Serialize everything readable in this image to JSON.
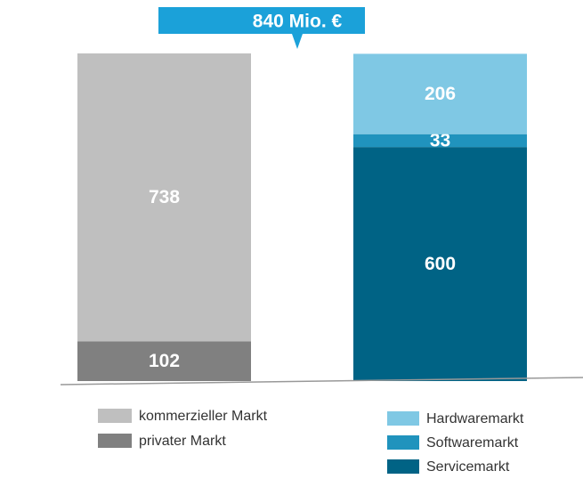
{
  "chart_data": {
    "type": "bar",
    "stacked": true,
    "title": "840 Mio. €",
    "categories": [
      null,
      null
    ],
    "series": [
      {
        "name": "privater Markt",
        "color": "#808080",
        "values": [
          102,
          null
        ]
      },
      {
        "name": "kommerzieller Markt",
        "color": "#bfbfbf",
        "values": [
          738,
          null
        ]
      },
      {
        "name": "Servicemarkt",
        "color": "#006385",
        "values": [
          null,
          600
        ]
      },
      {
        "name": "Softwaremarkt",
        "color": "#2093bd",
        "values": [
          null,
          33
        ]
      },
      {
        "name": "Hardwaremarkt",
        "color": "#7fc8e4",
        "values": [
          null,
          206
        ]
      }
    ]
  }
}
